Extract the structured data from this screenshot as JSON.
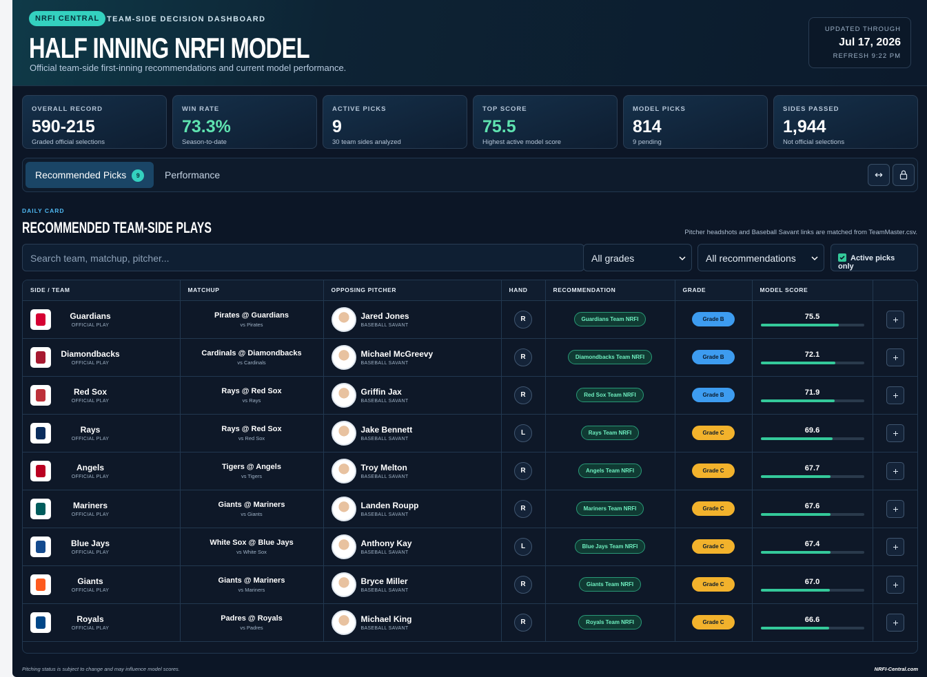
{
  "header": {
    "badge": "NRFI CENTRAL",
    "eyebrow": "TEAM-SIDE DECISION DASHBOARD",
    "title": "HALF INNING NRFI MODEL",
    "subtitle": "Official team-side first-inning recommendations and current model performance."
  },
  "updated": {
    "label": "UPDATED THROUGH",
    "date": "Jul 17, 2026",
    "refresh": "REFRESH 9:22 PM"
  },
  "stats": [
    {
      "label": "OVERALL RECORD",
      "value": "590-215",
      "note": "Graded official selections",
      "color": "#ffffff"
    },
    {
      "label": "WIN RATE",
      "value": "73.3%",
      "note": "Season-to-date",
      "color": "#5fe3b0"
    },
    {
      "label": "ACTIVE PICKS",
      "value": 9,
      "note": "30 team sides analyzed",
      "color": "#ffffff"
    },
    {
      "label": "TOP SCORE",
      "value": 75.5,
      "note": "Highest active model score",
      "color": "#5fe3b0"
    },
    {
      "label": "MODEL PICKS",
      "value": 814,
      "note": "9 pending",
      "color": "#ffffff"
    },
    {
      "label": "SIDES PASSED",
      "value": "1,944",
      "note": "Not official selections",
      "color": "#ffffff"
    }
  ],
  "tabs": [
    {
      "label": "Recommended Picks",
      "count": 9
    },
    {
      "label": "Performance"
    }
  ],
  "section": {
    "eyebrow": "DAILY CARD",
    "title": "RECOMMENDED TEAM-SIDE PLAYS",
    "note": "Pitcher headshots and Baseball Savant links are matched from TeamMaster.csv."
  },
  "filters": {
    "search": "Search team, matchup, pitcher...",
    "grade": "All grades",
    "recommendation": "All recommendations",
    "active": "Active picks only"
  },
  "table": {
    "columns": [
      "SIDE / TEAM",
      "MATCHUP",
      "OPPOSING PITCHER",
      "HAND",
      "RECOMMENDATION",
      "GRADE",
      "MODEL SCORE"
    ],
    "rows": [
      {
        "team": "Guardians",
        "team_note": "OFFICIAL PLAY",
        "color": "#d50032",
        "matchup": "Pirates @ Guardians",
        "vs": "vs Pirates",
        "pitcher": "Jared Jones",
        "pitcher_note": "BASEBALL SAVANT",
        "hand": "R",
        "recommendation": "Guardians Team NRFI",
        "grade": "Grade B",
        "grade_color": "#3d9cf0",
        "score": 75.5
      },
      {
        "team": "Diamondbacks",
        "team_note": "OFFICIAL PLAY",
        "color": "#a71930",
        "matchup": "Cardinals @ Diamondbacks",
        "vs": "vs Cardinals",
        "pitcher": "Michael McGreevy",
        "pitcher_note": "BASEBALL SAVANT",
        "hand": "R",
        "recommendation": "Diamondbacks Team NRFI",
        "grade": "Grade B",
        "grade_color": "#3d9cf0",
        "score": 72.1
      },
      {
        "team": "Red Sox",
        "team_note": "OFFICIAL PLAY",
        "color": "#bd3039",
        "matchup": "Rays @ Red Sox",
        "vs": "vs Rays",
        "pitcher": "Griffin Jax",
        "pitcher_note": "BASEBALL SAVANT",
        "hand": "R",
        "recommendation": "Red Sox Team NRFI",
        "grade": "Grade B",
        "grade_color": "#3d9cf0",
        "score": 71.9
      },
      {
        "team": "Rays",
        "team_note": "OFFICIAL PLAY",
        "color": "#092c5c",
        "matchup": "Rays @ Red Sox",
        "vs": "vs Red Sox",
        "pitcher": "Jake Bennett",
        "pitcher_note": "BASEBALL SAVANT",
        "hand": "L",
        "recommendation": "Rays Team NRFI",
        "grade": "Grade C",
        "grade_color": "#f2b22c",
        "score": 69.6
      },
      {
        "team": "Angels",
        "team_note": "OFFICIAL PLAY",
        "color": "#ba0021",
        "matchup": "Tigers @ Angels",
        "vs": "vs Tigers",
        "pitcher": "Troy Melton",
        "pitcher_note": "BASEBALL SAVANT",
        "hand": "R",
        "recommendation": "Angels Team NRFI",
        "grade": "Grade C",
        "grade_color": "#f2b22c",
        "score": 67.7
      },
      {
        "team": "Mariners",
        "team_note": "OFFICIAL PLAY",
        "color": "#005c5c",
        "matchup": "Giants @ Mariners",
        "vs": "vs Giants",
        "pitcher": "Landen Roupp",
        "pitcher_note": "BASEBALL SAVANT",
        "hand": "R",
        "recommendation": "Mariners Team NRFI",
        "grade": "Grade C",
        "grade_color": "#f2b22c",
        "score": 67.6
      },
      {
        "team": "Blue Jays",
        "team_note": "OFFICIAL PLAY",
        "color": "#134a8e",
        "matchup": "White Sox @ Blue Jays",
        "vs": "vs White Sox",
        "pitcher": "Anthony Kay",
        "pitcher_note": "BASEBALL SAVANT",
        "hand": "L",
        "recommendation": "Blue Jays Team NRFI",
        "grade": "Grade C",
        "grade_color": "#f2b22c",
        "score": 67.4
      },
      {
        "team": "Giants",
        "team_note": "OFFICIAL PLAY",
        "color": "#fd5a1e",
        "matchup": "Giants @ Mariners",
        "vs": "vs Mariners",
        "pitcher": "Bryce Miller",
        "pitcher_note": "BASEBALL SAVANT",
        "hand": "R",
        "recommendation": "Giants Team NRFI",
        "grade": "Grade C",
        "grade_color": "#f2b22c",
        "score": 67.0,
        "score_label": "67.0"
      },
      {
        "team": "Royals",
        "team_note": "OFFICIAL PLAY",
        "color": "#004687",
        "matchup": "Padres @ Royals",
        "vs": "vs Padres",
        "pitcher": "Michael King",
        "pitcher_note": "BASEBALL SAVANT",
        "hand": "R",
        "recommendation": "Royals Team NRFI",
        "grade": "Grade C",
        "grade_color": "#f2b22c",
        "score": 66.6
      }
    ]
  },
  "footer": {
    "note": "Pitching status is subject to change and may influence model scores.",
    "site": "NRFI-Central.com"
  }
}
